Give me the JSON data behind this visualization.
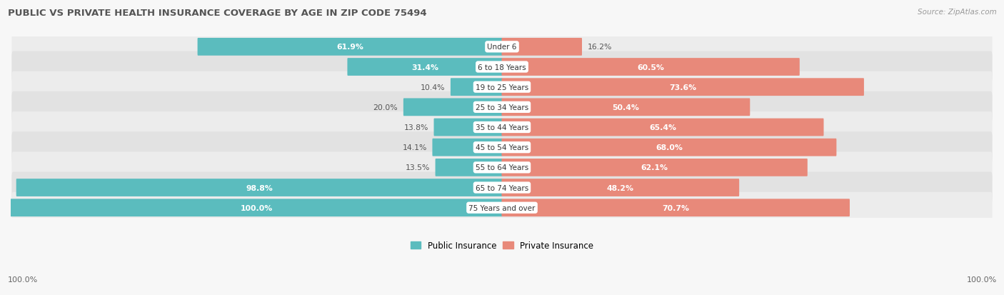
{
  "title": "PUBLIC VS PRIVATE HEALTH INSURANCE COVERAGE BY AGE IN ZIP CODE 75494",
  "source": "Source: ZipAtlas.com",
  "categories": [
    "Under 6",
    "6 to 18 Years",
    "19 to 25 Years",
    "25 to 34 Years",
    "35 to 44 Years",
    "45 to 54 Years",
    "55 to 64 Years",
    "65 to 74 Years",
    "75 Years and over"
  ],
  "public_values": [
    61.9,
    31.4,
    10.4,
    20.0,
    13.8,
    14.1,
    13.5,
    98.8,
    100.0
  ],
  "private_values": [
    16.2,
    60.5,
    73.6,
    50.4,
    65.4,
    68.0,
    62.1,
    48.2,
    70.7
  ],
  "public_color": "#5bbcbe",
  "private_color": "#e8897a",
  "public_label": "Public Insurance",
  "private_label": "Private Insurance",
  "row_bg_colors": [
    "#ececec",
    "#e2e2e2"
  ],
  "title_color": "#555555",
  "source_color": "#999999",
  "max_value": 100.0,
  "figsize": [
    14.06,
    4.14
  ],
  "dpi": 100,
  "white_label_threshold": 25.0,
  "bottom_label": "100.0%"
}
